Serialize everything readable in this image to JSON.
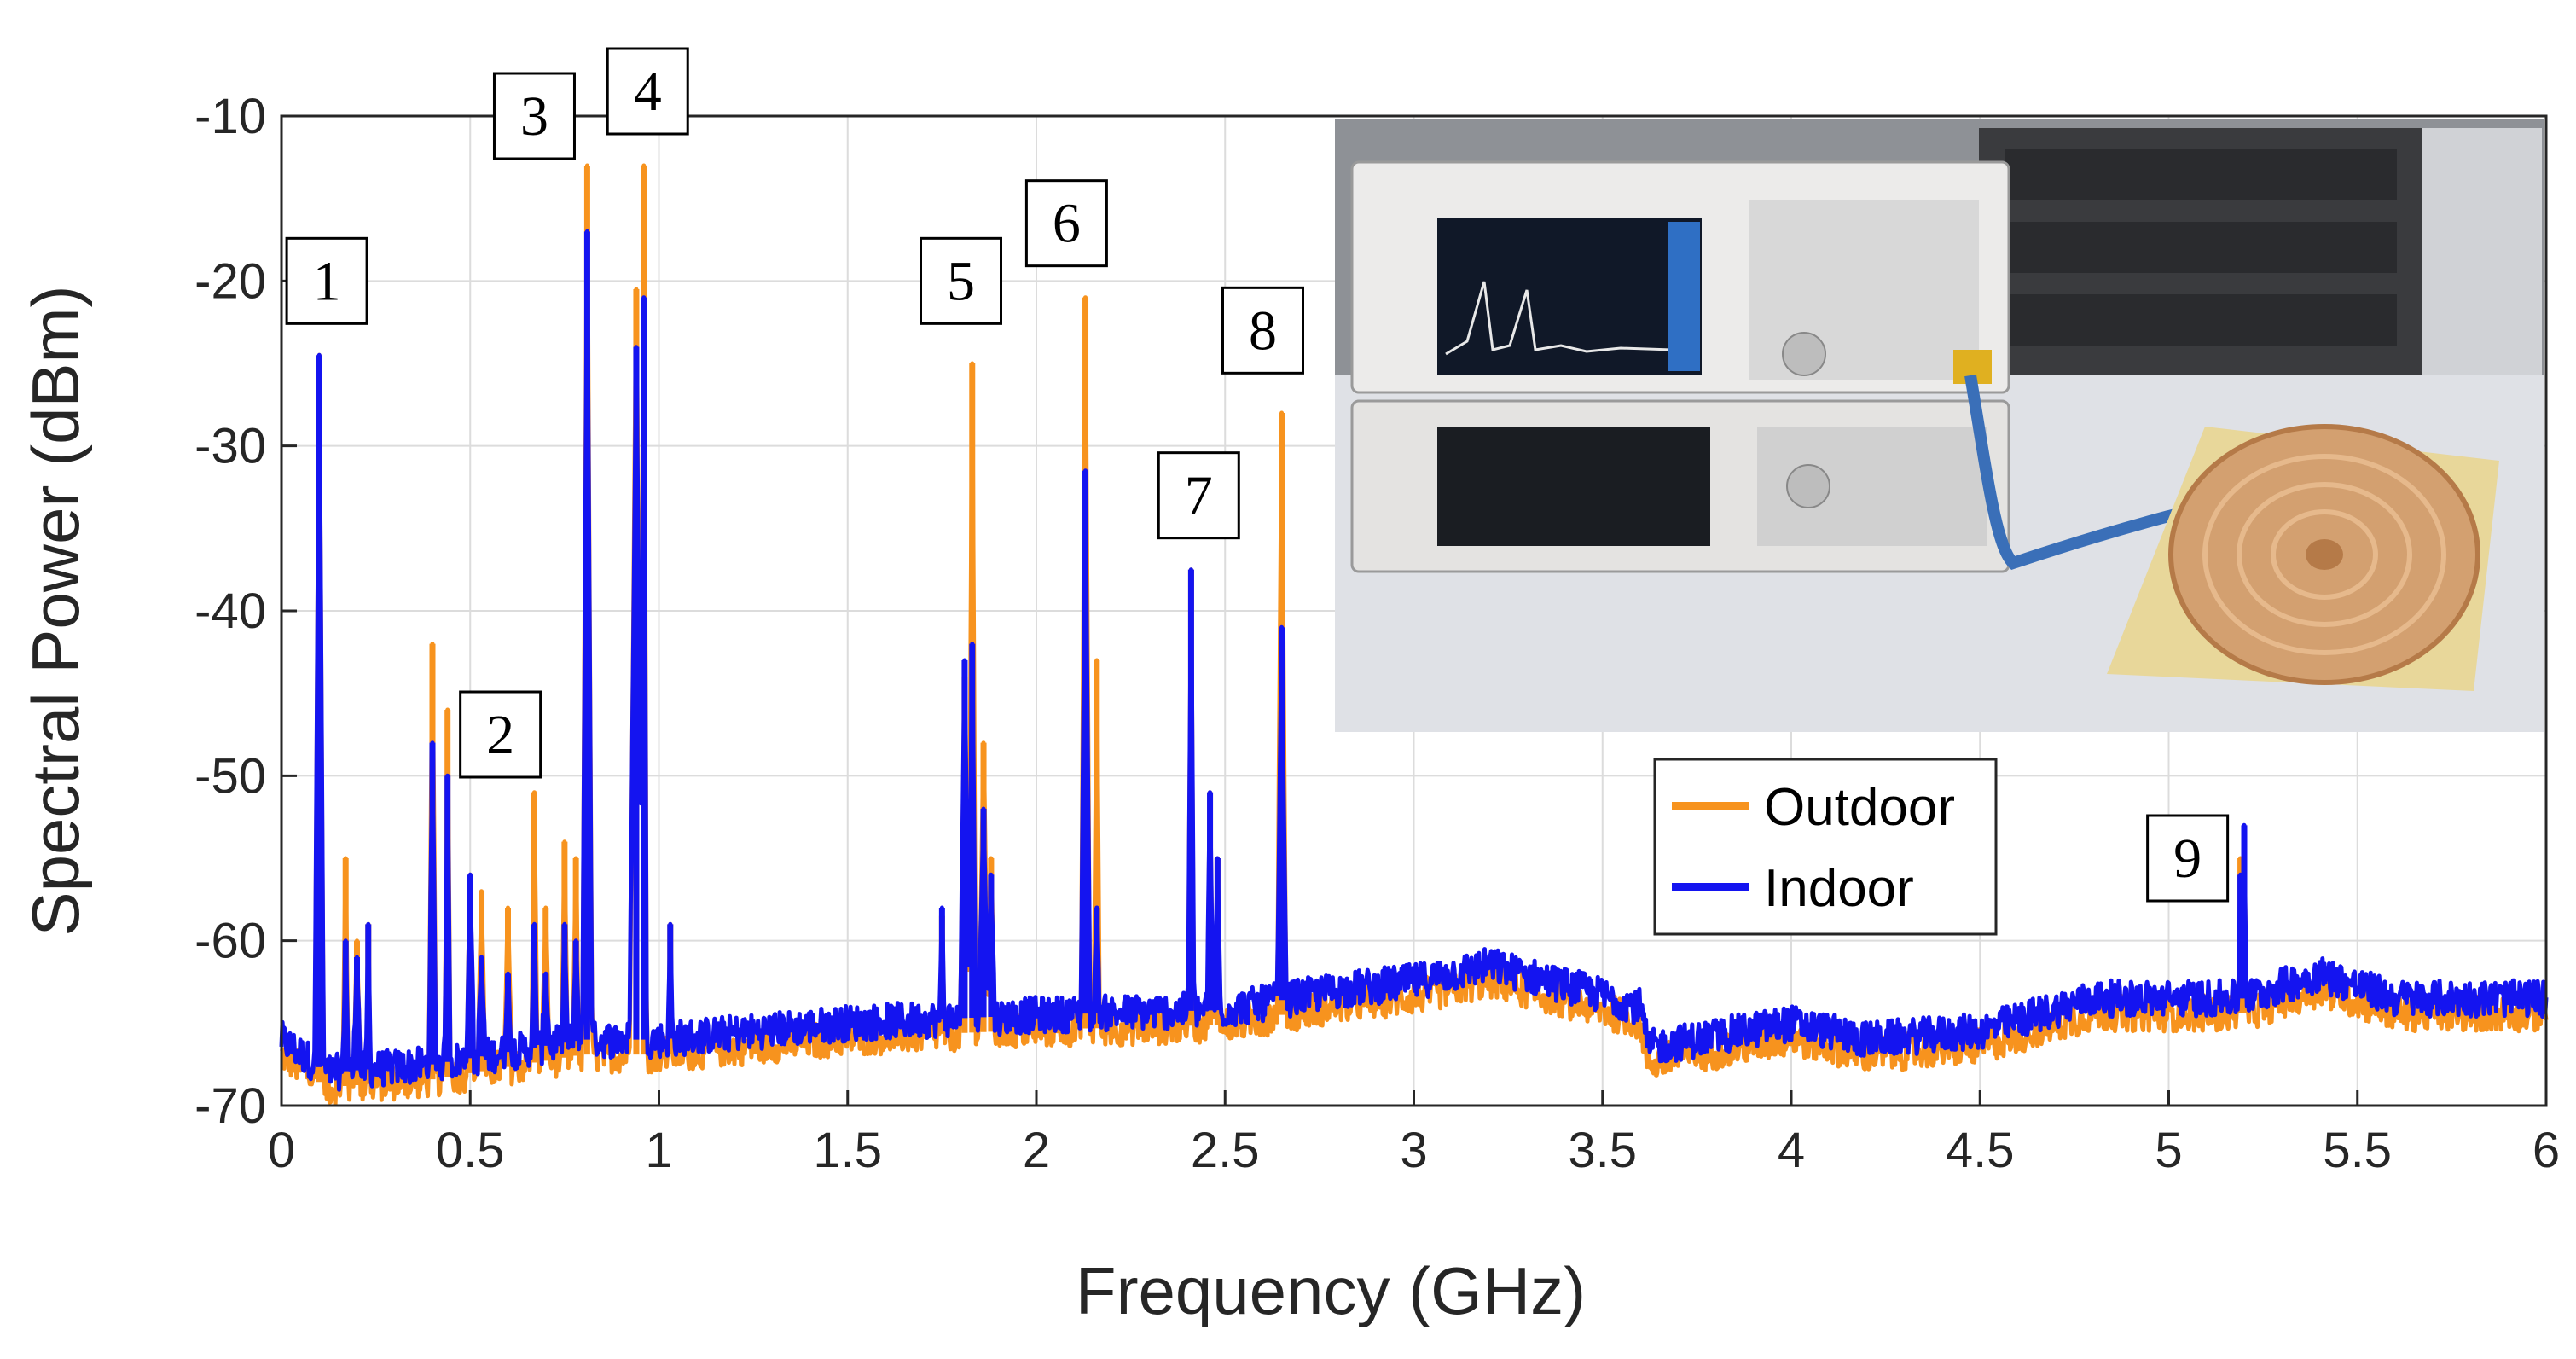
{
  "chart_data": {
    "type": "line",
    "xlabel": "Frequency (GHz)",
    "ylabel": "Spectral Power (dBm)",
    "xlim": [
      0,
      6
    ],
    "ylim": [
      -70,
      -10
    ],
    "xticks": [
      0,
      0.5,
      1,
      1.5,
      2,
      2.5,
      3,
      3.5,
      4,
      4.5,
      5,
      5.5,
      6
    ],
    "xtick_labels": [
      "0",
      "0.5",
      "1",
      "1.5",
      "2",
      "2.5",
      "3",
      "3.5",
      "4",
      "4.5",
      "5",
      "5.5",
      "6"
    ],
    "yticks": [
      -70,
      -60,
      -50,
      -40,
      -30,
      -20,
      -10
    ],
    "ytick_labels": [
      "-70",
      "-60",
      "-50",
      "-40",
      "-30",
      "-20",
      "-10"
    ],
    "grid": true,
    "legend_position": "center-right",
    "series": [
      {
        "name": "Outdoor",
        "color": "#f7931e",
        "peaks": [
          {
            "x": 0.1,
            "y": -24.5,
            "w": 0.012
          },
          {
            "x": 0.17,
            "y": -55,
            "w": 0.008
          },
          {
            "x": 0.2,
            "y": -60,
            "w": 0.01
          },
          {
            "x": 0.23,
            "y": -59,
            "w": 0.006
          },
          {
            "x": 0.4,
            "y": -42,
            "w": 0.01
          },
          {
            "x": 0.44,
            "y": -46,
            "w": 0.008
          },
          {
            "x": 0.5,
            "y": -56,
            "w": 0.01
          },
          {
            "x": 0.53,
            "y": -57,
            "w": 0.01
          },
          {
            "x": 0.6,
            "y": -58,
            "w": 0.01
          },
          {
            "x": 0.67,
            "y": -51,
            "w": 0.008
          },
          {
            "x": 0.7,
            "y": -58,
            "w": 0.01
          },
          {
            "x": 0.75,
            "y": -54,
            "w": 0.008
          },
          {
            "x": 0.78,
            "y": -55,
            "w": 0.008
          },
          {
            "x": 0.81,
            "y": -13,
            "w": 0.013
          },
          {
            "x": 0.94,
            "y": -20.5,
            "w": 0.018
          },
          {
            "x": 0.96,
            "y": -13,
            "w": 0.008
          },
          {
            "x": 1.03,
            "y": -59,
            "w": 0.006
          },
          {
            "x": 1.75,
            "y": -58.5,
            "w": 0.006
          },
          {
            "x": 1.81,
            "y": -44,
            "w": 0.012
          },
          {
            "x": 1.83,
            "y": -25,
            "w": 0.01
          },
          {
            "x": 1.86,
            "y": -48,
            "w": 0.012
          },
          {
            "x": 1.88,
            "y": -55,
            "w": 0.01
          },
          {
            "x": 2.13,
            "y": -21,
            "w": 0.012
          },
          {
            "x": 2.16,
            "y": -43,
            "w": 0.008
          },
          {
            "x": 2.41,
            "y": -37.5,
            "w": 0.008
          },
          {
            "x": 2.46,
            "y": -51,
            "w": 0.008
          },
          {
            "x": 2.48,
            "y": -55,
            "w": 0.008
          },
          {
            "x": 2.65,
            "y": -28,
            "w": 0.012
          },
          {
            "x": 5.19,
            "y": -55,
            "w": 0.006
          },
          {
            "x": 5.2,
            "y": -54,
            "w": 0.006
          }
        ]
      },
      {
        "name": "Indoor",
        "color": "#1414f0",
        "peaks": [
          {
            "x": 0.1,
            "y": -24.5,
            "w": 0.012
          },
          {
            "x": 0.17,
            "y": -60,
            "w": 0.008
          },
          {
            "x": 0.2,
            "y": -61,
            "w": 0.01
          },
          {
            "x": 0.23,
            "y": -59,
            "w": 0.006
          },
          {
            "x": 0.4,
            "y": -48,
            "w": 0.01
          },
          {
            "x": 0.44,
            "y": -50,
            "w": 0.008
          },
          {
            "x": 0.5,
            "y": -56,
            "w": 0.01
          },
          {
            "x": 0.53,
            "y": -61,
            "w": 0.01
          },
          {
            "x": 0.6,
            "y": -62,
            "w": 0.01
          },
          {
            "x": 0.67,
            "y": -59,
            "w": 0.008
          },
          {
            "x": 0.7,
            "y": -62,
            "w": 0.01
          },
          {
            "x": 0.75,
            "y": -59,
            "w": 0.008
          },
          {
            "x": 0.78,
            "y": -60,
            "w": 0.008
          },
          {
            "x": 0.81,
            "y": -17,
            "w": 0.013
          },
          {
            "x": 0.94,
            "y": -24,
            "w": 0.018
          },
          {
            "x": 0.96,
            "y": -21,
            "w": 0.008
          },
          {
            "x": 1.03,
            "y": -59,
            "w": 0.006
          },
          {
            "x": 1.75,
            "y": -58,
            "w": 0.006
          },
          {
            "x": 1.81,
            "y": -43,
            "w": 0.012
          },
          {
            "x": 1.83,
            "y": -42,
            "w": 0.01
          },
          {
            "x": 1.86,
            "y": -52,
            "w": 0.012
          },
          {
            "x": 1.88,
            "y": -56,
            "w": 0.01
          },
          {
            "x": 2.13,
            "y": -31.5,
            "w": 0.012
          },
          {
            "x": 2.16,
            "y": -58,
            "w": 0.008
          },
          {
            "x": 2.41,
            "y": -37.5,
            "w": 0.008
          },
          {
            "x": 2.46,
            "y": -51,
            "w": 0.008
          },
          {
            "x": 2.48,
            "y": -55,
            "w": 0.008
          },
          {
            "x": 2.65,
            "y": -41,
            "w": 0.012
          },
          {
            "x": 5.19,
            "y": -56,
            "w": 0.006
          },
          {
            "x": 5.2,
            "y": -53,
            "w": 0.006
          }
        ]
      }
    ],
    "noise_floor": [
      {
        "x": 0.0,
        "y": -66
      },
      {
        "x": 0.12,
        "y": -68
      },
      {
        "x": 0.4,
        "y": -67.5
      },
      {
        "x": 0.8,
        "y": -66
      },
      {
        "x": 1.0,
        "y": -66
      },
      {
        "x": 1.5,
        "y": -65
      },
      {
        "x": 2.0,
        "y": -64.5
      },
      {
        "x": 2.5,
        "y": -64.2
      },
      {
        "x": 2.8,
        "y": -63
      },
      {
        "x": 3.0,
        "y": -62.5
      },
      {
        "x": 3.2,
        "y": -61.5
      },
      {
        "x": 3.45,
        "y": -63
      },
      {
        "x": 3.6,
        "y": -64
      },
      {
        "x": 3.62,
        "y": -66.5
      },
      {
        "x": 4.0,
        "y": -65
      },
      {
        "x": 4.2,
        "y": -66
      },
      {
        "x": 4.5,
        "y": -65.5
      },
      {
        "x": 4.8,
        "y": -63.5
      },
      {
        "x": 5.2,
        "y": -63.5
      },
      {
        "x": 5.4,
        "y": -62
      },
      {
        "x": 5.6,
        "y": -63.5
      },
      {
        "x": 6.0,
        "y": -63.5
      }
    ],
    "annotations": [
      {
        "label": "1",
        "x": 0.12,
        "y": -20
      },
      {
        "label": "2",
        "x": 0.58,
        "y": -47.5
      },
      {
        "label": "3",
        "x": 0.67,
        "y": -10
      },
      {
        "label": "4",
        "x": 0.97,
        "y": -8.5
      },
      {
        "label": "5",
        "x": 1.8,
        "y": -20
      },
      {
        "label": "6",
        "x": 2.08,
        "y": -16.5
      },
      {
        "label": "7",
        "x": 2.43,
        "y": -33
      },
      {
        "label": "8",
        "x": 2.6,
        "y": -23
      },
      {
        "label": "9",
        "x": 5.05,
        "y": -55
      }
    ]
  }
}
